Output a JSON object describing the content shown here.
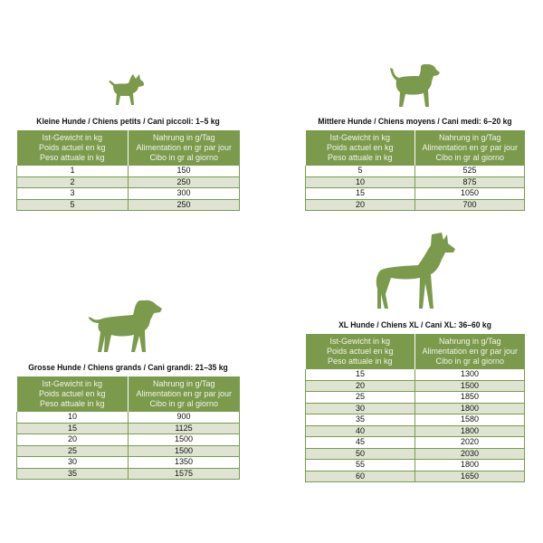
{
  "colors": {
    "header": "#7b9a4c",
    "alt_row": "#dfe4d2"
  },
  "headers": [
    "Ist-Gewicht in kg\nPoids actuel en kg\nPeso attuale in kg",
    "Nahrung in g/Tag\nAlimentation en gr par jour\nCibo in gr al giorno"
  ],
  "header_lines": {
    "weight": [
      "Ist-Gewicht in kg",
      "Poids actuel en kg",
      "Peso attuale in kg"
    ],
    "food": [
      "Nahrung in g/Tag",
      "Alimentation en gr par jour",
      "Cibo in gr al giorno"
    ]
  },
  "tables": [
    {
      "title": "Kleine Hunde / Chiens petits / Cani piccoli: 1–5 kg",
      "icon": "small-dog-icon",
      "rows": [
        [
          "1",
          "150"
        ],
        [
          "2",
          "250"
        ],
        [
          "3",
          "300"
        ],
        [
          "5",
          "250"
        ]
      ]
    },
    {
      "title": "Mittlere Hunde / Chiens moyens / Cani medi: 6–20 kg",
      "icon": "medium-dog-icon",
      "rows": [
        [
          "5",
          "525"
        ],
        [
          "10",
          "875"
        ],
        [
          "15",
          "1050"
        ],
        [
          "20",
          "700"
        ]
      ]
    },
    {
      "title": "Grosse Hunde / Chiens grands / Cani grandi: 21–35 kg",
      "icon": "large-dog-icon",
      "rows": [
        [
          "10",
          "900"
        ],
        [
          "15",
          "1125"
        ],
        [
          "20",
          "1500"
        ],
        [
          "25",
          "1500"
        ],
        [
          "30",
          "1350"
        ],
        [
          "35",
          "1575"
        ]
      ]
    },
    {
      "title": "XL Hunde / Chiens XL / Cani XL: 36–60 kg",
      "icon": "xl-dog-icon",
      "rows": [
        [
          "15",
          "1300"
        ],
        [
          "20",
          "1500"
        ],
        [
          "25",
          "1850"
        ],
        [
          "30",
          "1800"
        ],
        [
          "35",
          "1580"
        ],
        [
          "40",
          "1800"
        ],
        [
          "45",
          "2020"
        ],
        [
          "50",
          "2030"
        ],
        [
          "55",
          "1800"
        ],
        [
          "60",
          "1650"
        ]
      ]
    }
  ]
}
